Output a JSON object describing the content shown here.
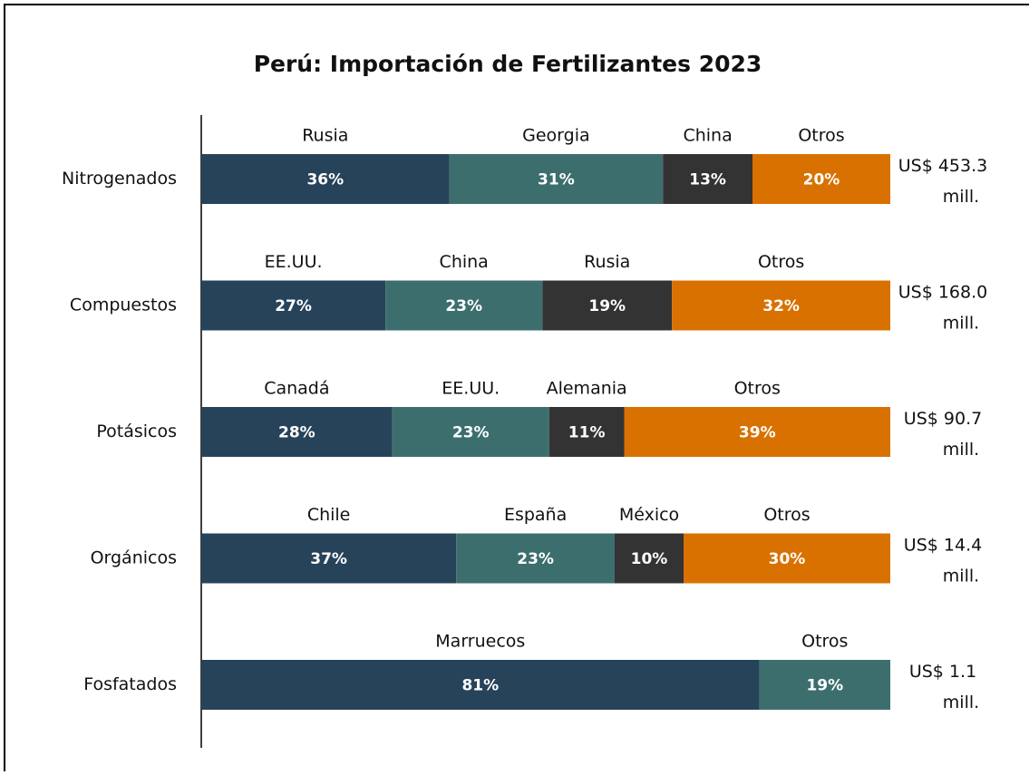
{
  "chart_data": {
    "type": "stacked_bar_100",
    "title": "Perú: Importación de Fertilizantes 2023",
    "categories": [
      "Nitrogenados",
      "Compuestos",
      "Potásicos",
      "Orgánicos",
      "Fosfatados"
    ],
    "colors": [
      "#27435a",
      "#3d6e6e",
      "#333333",
      "#d97100"
    ],
    "rows": [
      {
        "labels": [
          "Rusia",
          "Georgia",
          "China",
          "Otros"
        ],
        "values": [
          36,
          31,
          13,
          20
        ],
        "value_labels": [
          "36%",
          "31%",
          "13%",
          "20%"
        ],
        "total": [
          "US$ 453.3",
          "mill."
        ]
      },
      {
        "labels": [
          "EE.UU.",
          "China",
          "Rusia",
          "Otros"
        ],
        "values": [
          27,
          23,
          19,
          32
        ],
        "value_labels": [
          "27%",
          "23%",
          "19%",
          "32%"
        ],
        "total": [
          "US$ 168.0",
          "mill."
        ]
      },
      {
        "labels": [
          "Canadá",
          "EE.UU.",
          "Alemania",
          "Otros"
        ],
        "values": [
          28,
          23,
          11,
          39
        ],
        "value_labels": [
          "28%",
          "23%",
          "11%",
          "39%"
        ],
        "total": [
          "US$ 90.7",
          "mill."
        ]
      },
      {
        "labels": [
          "Chile",
          "España",
          "México",
          "Otros"
        ],
        "values": [
          37,
          23,
          10,
          30
        ],
        "value_labels": [
          "37%",
          "23%",
          "10%",
          "30%"
        ],
        "total": [
          "US$ 14.4",
          "mill."
        ]
      },
      {
        "labels": [
          "Marruecos",
          "Otros"
        ],
        "values": [
          81,
          19
        ],
        "value_labels": [
          "81%",
          "19%"
        ],
        "total": [
          "US$ 1.1",
          "mill."
        ]
      }
    ]
  }
}
